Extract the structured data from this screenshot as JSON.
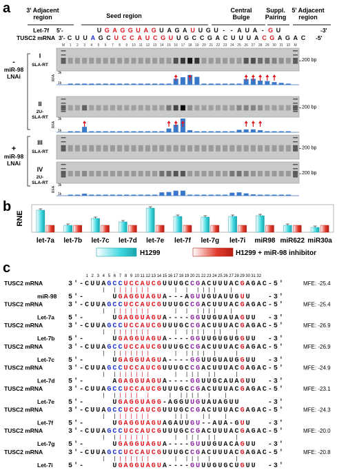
{
  "panel_a": {
    "label": "a",
    "regions": [
      "3' Adjacent region",
      "Seed region",
      "Central Bulge",
      "Suppl. Pairing",
      "5' Adjacent region"
    ],
    "let7f_row": {
      "name": "Let-7f",
      "start": "5'-",
      "end": "-3'",
      "bases": [
        "U",
        "G",
        "A",
        "G",
        "G",
        "U",
        "A",
        "G",
        "U",
        "A",
        "G",
        "A",
        "U",
        "U",
        "G",
        "U",
        "-",
        "-",
        "A",
        "U",
        "A",
        "-",
        "G",
        "U"
      ],
      "red": [
        1,
        2,
        3,
        4,
        5,
        6,
        7,
        12,
        22
      ]
    },
    "tusc2_row": {
      "name": "TUSC2 mRNA",
      "start": "3'-",
      "end": "-5'",
      "bases": [
        "C",
        "U",
        "U",
        "A",
        "G",
        "C",
        "U",
        "C",
        "C",
        "A",
        "U",
        "C",
        "G",
        "U",
        "U",
        "G",
        "C",
        "C",
        "G",
        "A",
        "C",
        "U",
        "U",
        "U",
        "A",
        "C",
        "G",
        "A",
        "G",
        "A",
        "C"
      ],
      "red": [
        6,
        7,
        8,
        9,
        10,
        11,
        12,
        13,
        25,
        26
      ],
      "blue": [
        3
      ]
    },
    "position_numbers": [
      "M",
      "1",
      "2",
      "3",
      "4",
      "5",
      "6",
      "7",
      "8",
      "9",
      "10",
      "11",
      "12",
      "13",
      "14",
      "15",
      "16",
      "17",
      "18",
      "19",
      "20",
      "21",
      "22",
      "23",
      "24",
      "25",
      "26",
      "27",
      "28",
      "29",
      "30",
      "31",
      "32",
      "M"
    ],
    "gel_labels": [
      "I",
      "II",
      "III",
      "IV"
    ],
    "gel_sublabels": [
      "SLA-RT",
      "2U-SLA-RT",
      "SLA-RT",
      "2U-SLA-RT"
    ],
    "group_labels": [
      {
        "sign": "-",
        "text": "miR-98 LNAi"
      },
      {
        "sign": "+",
        "text": "miR-98 LNAi"
      }
    ],
    "bp_label": "200 bp",
    "rfa_label": "RFA",
    "rfa_ticks": [
      "3k",
      "1k"
    ],
    "rfa_values": [
      [
        0.3,
        0.3,
        0.3,
        0.3,
        0.3,
        0.3,
        0.3,
        0.3,
        0.3,
        0.3,
        0.3,
        0.3,
        0.3,
        0.3,
        0.3,
        1.6,
        2.0,
        2.6,
        2.1,
        0.3,
        0.3,
        0.3,
        0.3,
        0.3,
        0.3,
        1.5,
        1.6,
        1.1,
        1.0,
        0.7,
        0.5,
        0.3
      ],
      [
        0.2,
        0.2,
        1.3,
        0.2,
        0.2,
        0.2,
        0.2,
        0.2,
        0.2,
        0.2,
        0.2,
        0.2,
        0.2,
        0.2,
        0.9,
        1.8,
        3.3,
        0.5,
        0.2,
        0.2,
        0.2,
        0.2,
        0.2,
        0.2,
        0.6,
        0.7,
        0.7,
        0.5,
        0.2,
        0.2,
        0.2,
        0.2
      ],
      [
        0.3,
        0.3,
        0.3,
        0.3,
        0.3,
        0.3,
        0.3,
        0.3,
        0.3,
        0.3,
        0.3,
        0.3,
        0.3,
        0.3,
        0.3,
        0.3,
        0.3,
        0.3,
        0.3,
        0.3,
        0.3,
        0.3,
        0.3,
        0.3,
        0.3,
        0.3,
        0.3,
        0.3,
        0.3,
        0.3,
        0.3,
        0.3
      ],
      [
        0.3,
        0.3,
        0.6,
        0.3,
        0.3,
        0.3,
        0.3,
        0.3,
        0.3,
        0.3,
        0.3,
        0.3,
        0.3,
        1.0,
        1.1,
        1.5,
        1.5,
        0.3,
        0.3,
        0.3,
        0.3,
        0.3,
        0.3,
        0.9,
        1.0,
        0.7,
        0.4,
        0.3,
        0.3,
        0.3,
        0.3,
        0.3
      ]
    ],
    "arrow_positions": [
      [
        16,
        18,
        26,
        27,
        28,
        29,
        30
      ],
      [
        3,
        15,
        16,
        17,
        26,
        27,
        28
      ],
      [],
      []
    ]
  },
  "panel_b": {
    "label": "b",
    "chart_data": {
      "type": "bar",
      "ylabel": "RNE",
      "categories": [
        "let-7a",
        "let-7b",
        "let-7c",
        "let-7d",
        "let-7e",
        "let-7f",
        "let-7g",
        "let-7i",
        "miR98",
        "miR622",
        "miR30a"
      ],
      "series": [
        {
          "name": "H1299",
          "values": [
            3.2,
            1.0,
            2.0,
            1.5,
            3.5,
            2.3,
            2.2,
            2.3,
            2.4,
            1.0,
            0.7
          ]
        },
        {
          "name": "H1299 + miR-98 inhibitor",
          "values": [
            1.0,
            1.0,
            1.0,
            1.0,
            1.0,
            1.0,
            1.0,
            1.0,
            1.0,
            1.0,
            1.0
          ]
        }
      ],
      "colors": [
        "#3fd8e0",
        "#e23b2c"
      ],
      "ylim": [
        0,
        4
      ]
    }
  },
  "panel_c": {
    "label": "c",
    "header": [
      "1",
      "2",
      "3",
      "4",
      "5",
      "6",
      "7",
      "8",
      "9",
      "10",
      "11",
      "12",
      "13",
      "14",
      "15",
      "16",
      "17",
      "18",
      "19",
      "20",
      "21",
      "22",
      "23",
      "24",
      "25",
      "26",
      "27",
      "28",
      "29",
      "30",
      "31",
      "32"
    ],
    "target_name": "TUSC2 mRNA",
    "target_seq": "3'-CUUAGCCUCCAUCGUUUGCCGACUUUACGAGAC-5'",
    "pairs": [
      {
        "mirna": "miR-98",
        "seq": "5'-     UGAGGUAGUA---AGUUGUAUUGUU   -3'",
        "match": "      | |||||||    | | ||||  |      ",
        "mfe": "MFE: -25.4"
      },
      {
        "mirna": "Let-7a",
        "seq": "5'-     UGAGGUAGUA----GGUUGUAUAGUU  -3'",
        "match": "      | |||||||    | | ||||  |      ",
        "mfe": "MFE: -25.4"
      },
      {
        "mirna": "Let-7b",
        "seq": "5'-     UGAGGUAGUA----GGUUGUGUGGUU  -3'",
        "match": "      | |||||||    | |||| ||  |     ",
        "mfe": "MFE: -26.9"
      },
      {
        "mirna": "Let-7c",
        "seq": "5'-     UGAGGUAGUA----GGUUGUAUGGUU  -3'",
        "match": "      | |||||||    | |||| |   |     ",
        "mfe": "MFE: -26.9"
      },
      {
        "mirna": "Let-7d",
        "seq": "5'-     AGAGGUAGUA----GGUUGCAUAGUU  -3'",
        "match": "      | |||||||    | ||| ||   |     ",
        "mfe": "MFE: -24.9"
      },
      {
        "mirna": "Let-7e",
        "seq": "5'-     UGAGGUAGG-AGGUUGUAUAGUU     -3'",
        "match": "      | ||||| |   | |||| |  |       ",
        "mfe": "MFE: -23.1"
      },
      {
        "mirna": "Let-7f",
        "seq": "5'-     UGAGGUAGUAGAUUGU--AUA-GUU   -3'",
        "match": "      | |||||||    |||  ||  |       ",
        "mfe": "MFE: -24.3"
      },
      {
        "mirna": "Let-7g",
        "seq": "5'-     UGAGGUAGUA----GUUUGUACAGUU  -3'",
        "match": "      | |||||||    | ||| ||   |     ",
        "mfe": "MFE: -20.0"
      },
      {
        "mirna": "Let-7i",
        "seq": "5'-     UGAGGUAGUA----GUUUGUGCUGUU  -3'",
        "match": "      | |||||||    | ||| |    |     ",
        "mfe": "MFE: -20.8"
      }
    ]
  }
}
